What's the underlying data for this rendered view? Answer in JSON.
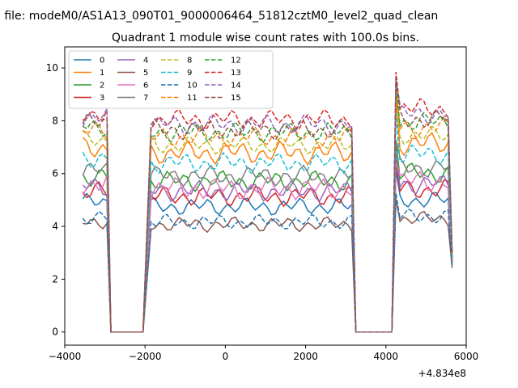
{
  "figure": {
    "suptitle": "n file: modeM0/AS1A13_090T01_9000006464_51812cztM0_level2_quad_clean",
    "offset_label": "+4.834e8"
  },
  "chart_data": {
    "type": "line",
    "title": "Quadrant 1 module wise count rates with 100.0s bins.",
    "xlabel": "",
    "ylabel": "",
    "xlim": [
      -4000,
      6000
    ],
    "ylim": [
      -0.5,
      10.8
    ],
    "x_offset": 483400000,
    "x_ticks": [
      -4000,
      -2000,
      0,
      2000,
      4000,
      6000
    ],
    "x_tick_labels": [
      "−4000",
      "−2000",
      "0",
      "2000",
      "4000",
      "6000"
    ],
    "y_ticks": [
      0,
      2,
      4,
      6,
      8,
      10
    ],
    "y_tick_labels": [
      "0",
      "2",
      "4",
      "6",
      "8",
      "10"
    ],
    "grid": false,
    "legend_position": "top-left",
    "legend_columns": 4,
    "series": [
      {
        "name": "0",
        "color": "#1f77b4",
        "dash": "solid",
        "level": 4.9,
        "amp": 0.35,
        "phase": 0.3
      },
      {
        "name": "1",
        "color": "#ff7f0e",
        "dash": "solid",
        "level": 7.0,
        "amp": 0.45,
        "phase": 1.1
      },
      {
        "name": "2",
        "color": "#2ca02c",
        "dash": "solid",
        "level": 5.9,
        "amp": 0.4,
        "phase": 2.0
      },
      {
        "name": "3",
        "color": "#d62728",
        "dash": "solid",
        "level": 5.3,
        "amp": 0.4,
        "phase": 2.7
      },
      {
        "name": "4",
        "color": "#9467bd",
        "dash": "solid",
        "level": 5.5,
        "amp": 0.4,
        "phase": 3.5
      },
      {
        "name": "5",
        "color": "#8c564b",
        "dash": "solid",
        "level": 4.2,
        "amp": 0.3,
        "phase": 4.2
      },
      {
        "name": "6",
        "color": "#e377c2",
        "dash": "solid",
        "level": 5.6,
        "amp": 0.45,
        "phase": 5.0
      },
      {
        "name": "7",
        "color": "#7f7f7f",
        "dash": "solid",
        "level": 6.1,
        "amp": 0.4,
        "phase": 5.8
      },
      {
        "name": "8",
        "color": "#bcbd22",
        "dash": "dashed",
        "level": 7.3,
        "amp": 0.35,
        "phase": 0.8
      },
      {
        "name": "9",
        "color": "#17becf",
        "dash": "dashed",
        "level": 6.6,
        "amp": 0.4,
        "phase": 1.6
      },
      {
        "name": "10",
        "color": "#1f77b4",
        "dash": "dashed",
        "level": 4.3,
        "amp": 0.3,
        "phase": 2.4
      },
      {
        "name": "11",
        "color": "#ff7f0e",
        "dash": "dashed",
        "level": 7.6,
        "amp": 0.4,
        "phase": 3.1
      },
      {
        "name": "12",
        "color": "#2ca02c",
        "dash": "dashed",
        "level": 7.8,
        "amp": 0.4,
        "phase": 3.9
      },
      {
        "name": "13",
        "color": "#d62728",
        "dash": "dashed",
        "level": 8.3,
        "amp": 0.4,
        "phase": 4.6
      },
      {
        "name": "14",
        "color": "#9467bd",
        "dash": "dashed",
        "level": 8.1,
        "amp": 0.4,
        "phase": 5.4
      },
      {
        "name": "15",
        "color": "#8c564b",
        "dash": "dashed",
        "level": 7.9,
        "amp": 0.4,
        "phase": 6.1
      }
    ],
    "segments": [
      {
        "x_start": -3550,
        "x_end": -2950,
        "scale": 1.0
      },
      {
        "x_start": -1850,
        "x_end": 3150,
        "scale": 0.97
      },
      {
        "x_start": 4250,
        "x_end": 5550,
        "scale": 1.02
      }
    ],
    "gaps": [
      {
        "x_start": -2850,
        "x_end": -2050,
        "value": 0
      },
      {
        "x_start": 3250,
        "x_end": 4150,
        "value": 0
      }
    ],
    "end_point": {
      "x": 5650,
      "value": 2.7
    },
    "bin_size": 100
  }
}
